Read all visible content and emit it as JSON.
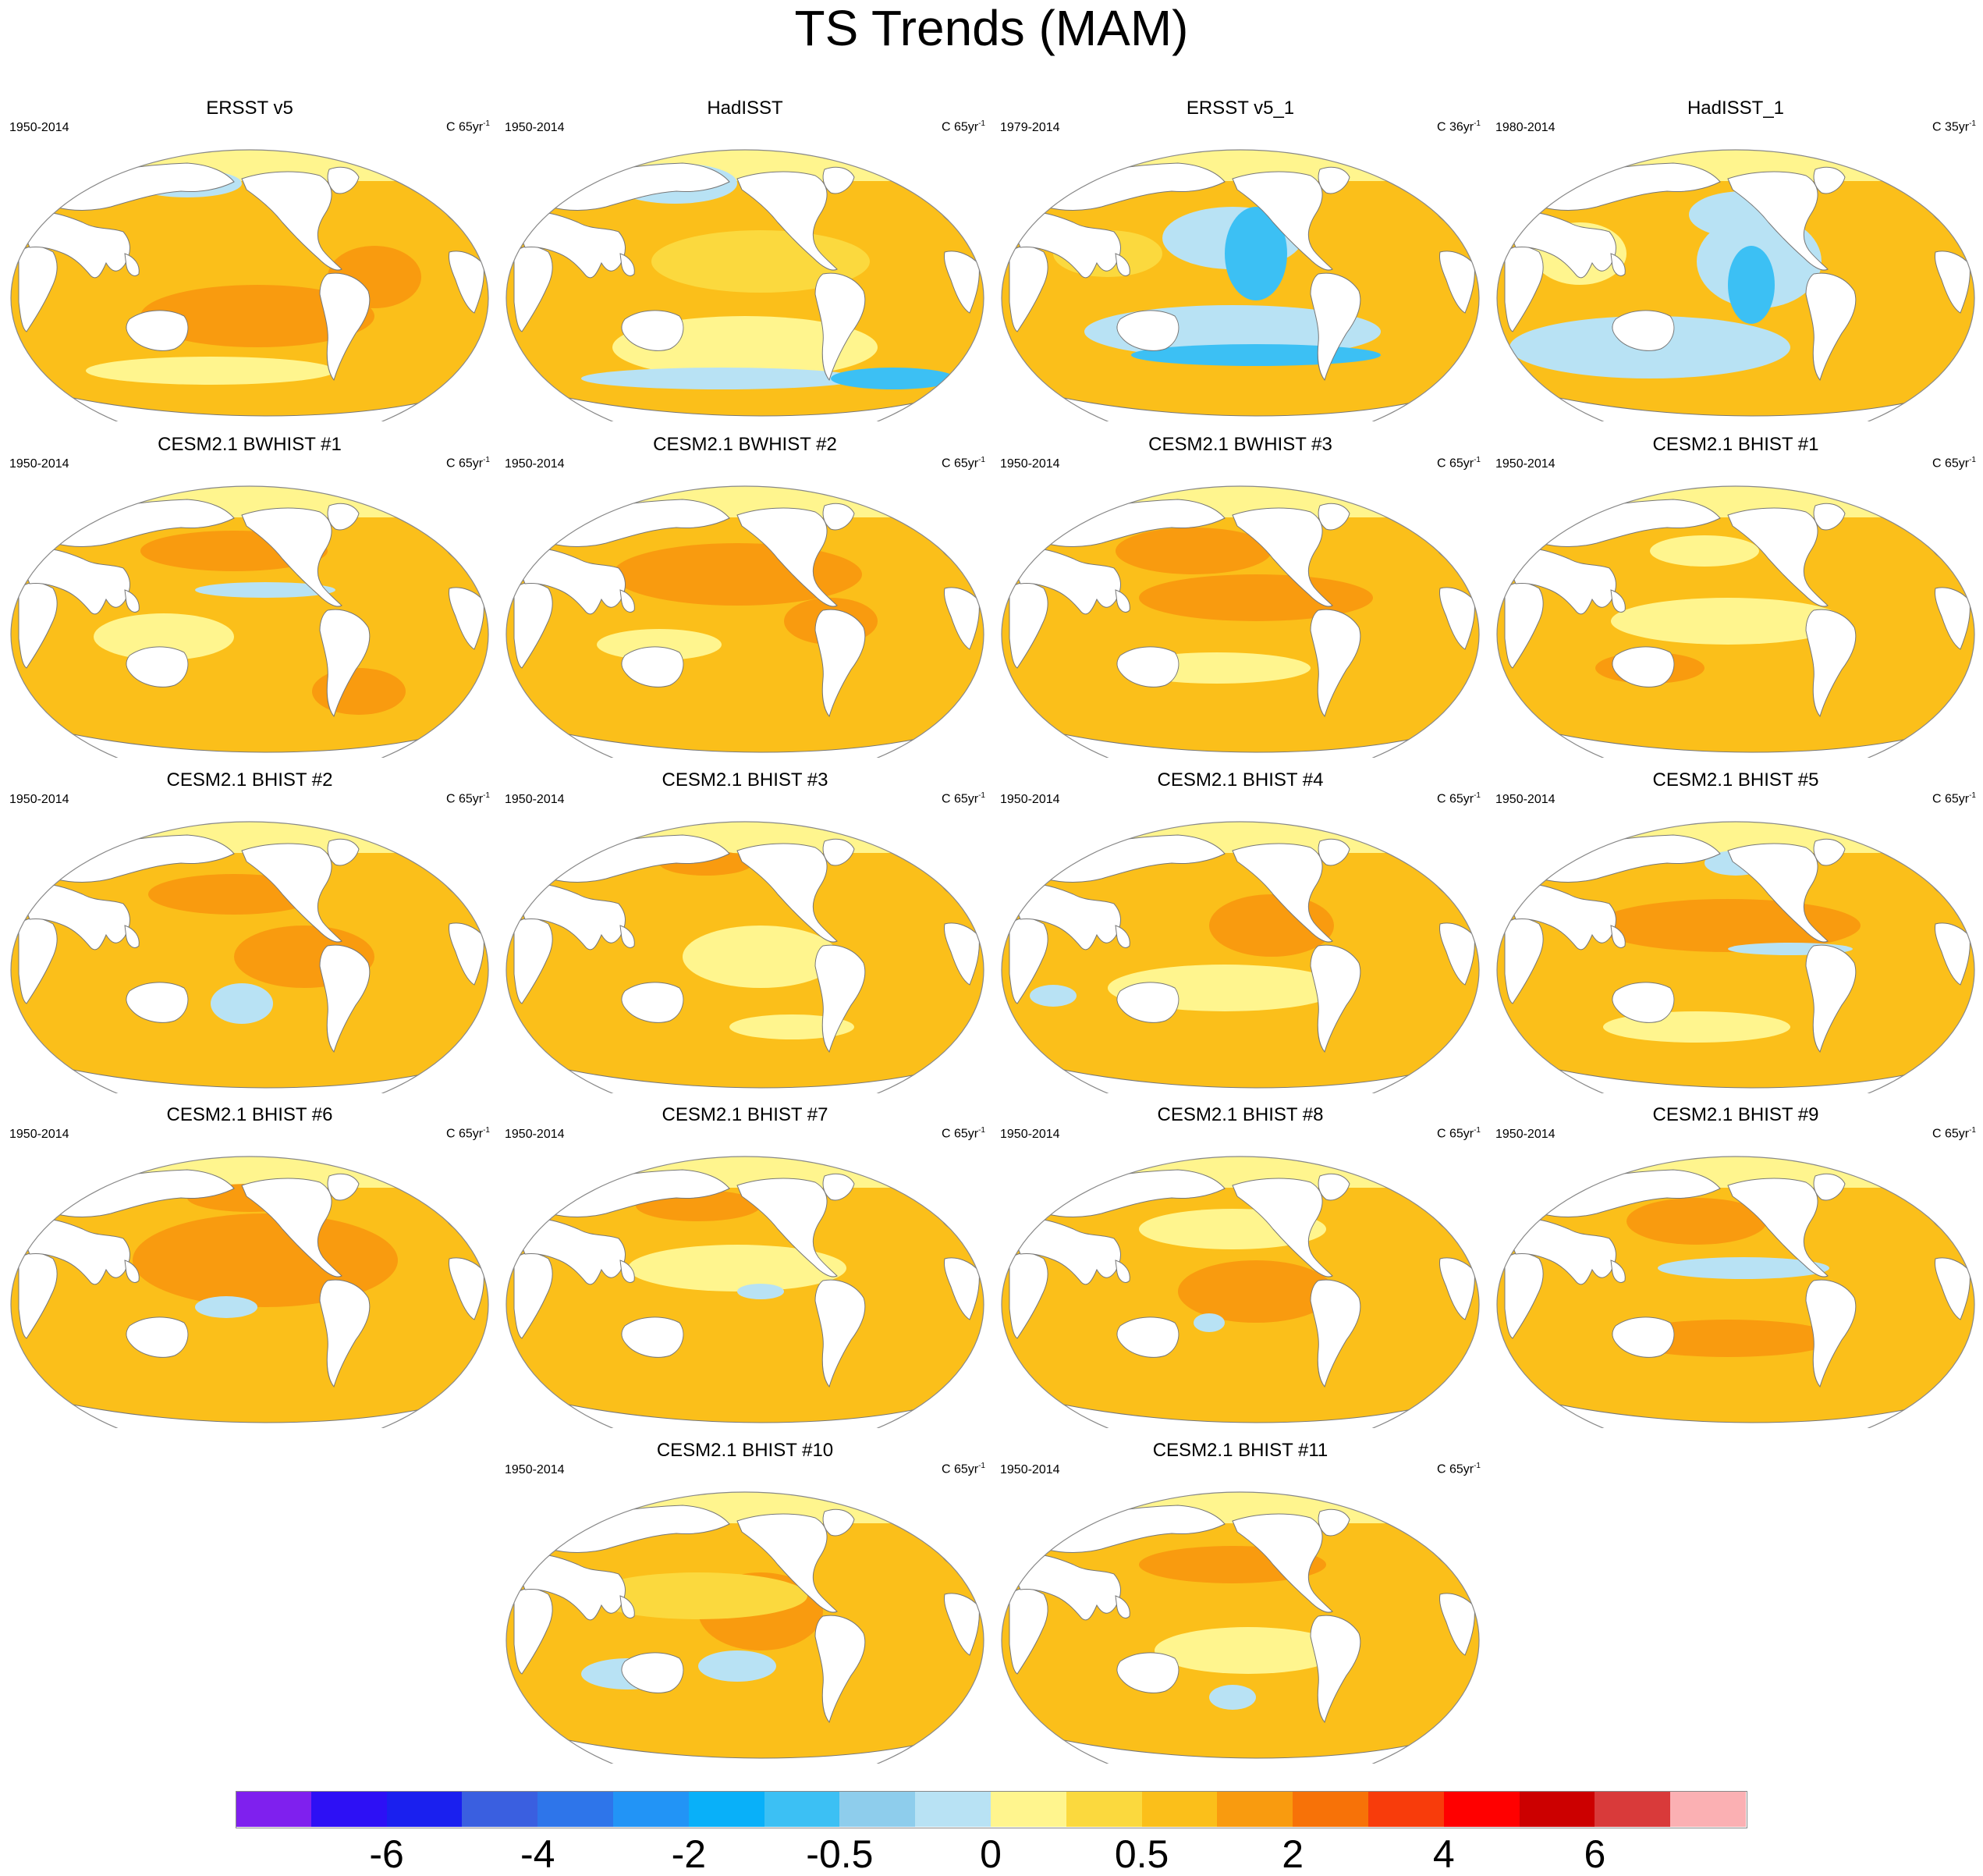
{
  "title": "TS Trends (MAM)",
  "panels": [
    {
      "title": "ERSST v5",
      "period": "1950-2014",
      "units": "C 65yr",
      "units_exp": "-1"
    },
    {
      "title": "HadISST",
      "period": "1950-2014",
      "units": "C 65yr",
      "units_exp": "-1"
    },
    {
      "title": "ERSST v5_1",
      "period": "1979-2014",
      "units": "C 36yr",
      "units_exp": "-1"
    },
    {
      "title": "HadISST_1",
      "period": "1980-2014",
      "units": "C 35yr",
      "units_exp": "-1"
    },
    {
      "title": "CESM2.1 BWHIST #1",
      "period": "1950-2014",
      "units": "C 65yr",
      "units_exp": "-1"
    },
    {
      "title": "CESM2.1 BWHIST #2",
      "period": "1950-2014",
      "units": "C 65yr",
      "units_exp": "-1"
    },
    {
      "title": "CESM2.1 BWHIST #3",
      "period": "1950-2014",
      "units": "C 65yr",
      "units_exp": "-1"
    },
    {
      "title": "CESM2.1 BHIST #1",
      "period": "1950-2014",
      "units": "C 65yr",
      "units_exp": "-1"
    },
    {
      "title": "CESM2.1 BHIST #2",
      "period": "1950-2014",
      "units": "C 65yr",
      "units_exp": "-1"
    },
    {
      "title": "CESM2.1 BHIST #3",
      "period": "1950-2014",
      "units": "C 65yr",
      "units_exp": "-1"
    },
    {
      "title": "CESM2.1 BHIST #4",
      "period": "1950-2014",
      "units": "C 65yr",
      "units_exp": "-1"
    },
    {
      "title": "CESM2.1 BHIST #5",
      "period": "1950-2014",
      "units": "C 65yr",
      "units_exp": "-1"
    },
    {
      "title": "CESM2.1 BHIST #6",
      "period": "1950-2014",
      "units": "C 65yr",
      "units_exp": "-1"
    },
    {
      "title": "CESM2.1 BHIST #7",
      "period": "1950-2014",
      "units": "C 65yr",
      "units_exp": "-1"
    },
    {
      "title": "CESM2.1 BHIST #8",
      "period": "1950-2014",
      "units": "C 65yr",
      "units_exp": "-1"
    },
    {
      "title": "CESM2.1 BHIST #9",
      "period": "1950-2014",
      "units": "C 65yr",
      "units_exp": "-1"
    },
    {
      "title": "CESM2.1 BHIST #10",
      "period": "1950-2014",
      "units": "C 65yr",
      "units_exp": "-1"
    },
    {
      "title": "CESM2.1 BHIST #11",
      "period": "1950-2014",
      "units": "C 65yr",
      "units_exp": "-1"
    }
  ],
  "colorbar": {
    "colors": [
      "#7f20ee",
      "#2d10f5",
      "#1a20ef",
      "#3a5fe0",
      "#2e75ea",
      "#2294f6",
      "#09b0f9",
      "#3cc0f4",
      "#8ecdec",
      "#b8e2f4",
      "#fff58e",
      "#fbd93e",
      "#fbbf1a",
      "#f99b0f",
      "#f77208",
      "#f83c0b",
      "#ff0000",
      "#cc0000",
      "#d93a3a",
      "#fbb0b3"
    ],
    "labels": [
      "-6",
      "-4",
      "-2",
      "-0.5",
      "0",
      "0.5",
      "2",
      "4",
      "6"
    ],
    "label_box_index": [
      2,
      4,
      6,
      8,
      10,
      12,
      14,
      16,
      18
    ]
  },
  "palette": {
    "ocean_warm": "#fbbf1a",
    "ocean_strong": "#f99b0f",
    "ocean_weak": "#fff58e",
    "ocean_yellow": "#fbd93e",
    "ocean_cool": "#b8e2f4",
    "ocean_cold": "#3cc0f4",
    "land": "#ffffff"
  }
}
